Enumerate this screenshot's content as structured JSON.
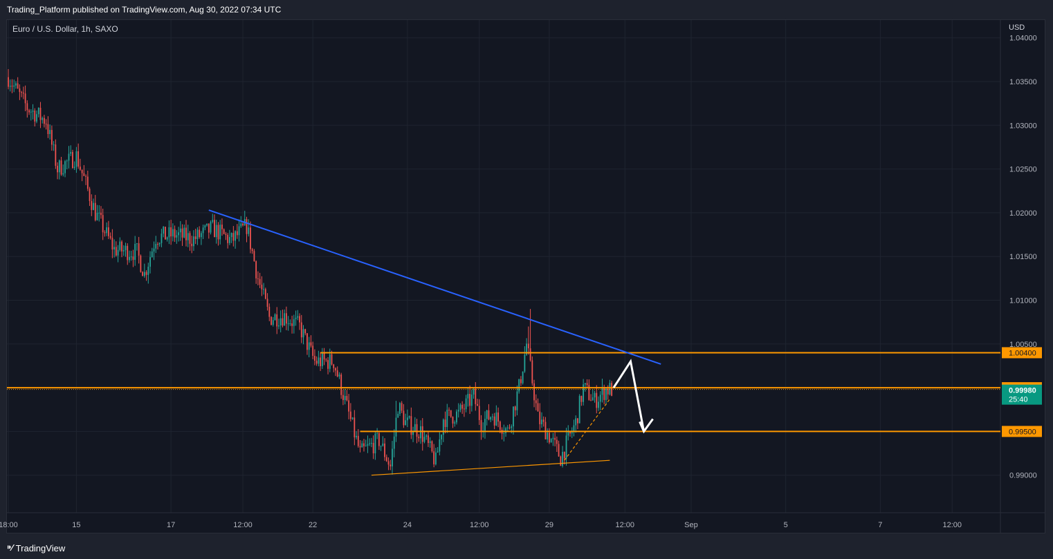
{
  "header": {
    "publisher_line": "Trading_Platform published on TradingView.com, Aug 30, 2022 07:34 UTC"
  },
  "chart_header": {
    "symbol_line": "Euro / U.S. Dollar, 1h, SAXO",
    "currency": "USD"
  },
  "footer": {
    "brand": "TradingView",
    "brand_icon": "tradingview-logo-icon"
  },
  "colors": {
    "background": "#131722",
    "grid": "#1f2430",
    "up_candle": "#26a69a",
    "down_candle": "#ef5350",
    "resistance_trendline": "#2962ff",
    "support_lines": "#ff9800",
    "projection_arrow": "#ffffff",
    "last_price_badge": "#089981"
  },
  "chart_data": {
    "type": "candlestick",
    "instrument": "Euro / U.S. Dollar",
    "timeframe": "1h",
    "source": "SAXO",
    "y_axis": {
      "unit": "USD",
      "ylim": [
        0.985,
        1.0405
      ],
      "tick_labels": [
        "1.04000",
        "1.03500",
        "1.03000",
        "1.02500",
        "1.02000",
        "1.01500",
        "1.01000",
        "1.00500",
        "0.99000"
      ]
    },
    "x_axis": {
      "tick_labels": [
        "18:00",
        "15",
        "17",
        "12:00",
        "22",
        "24",
        "12:00",
        "29",
        "12:00",
        "Sep",
        "5",
        "7",
        "12:00"
      ],
      "tick_positions_bars": [
        0,
        36,
        86,
        124,
        161,
        211,
        249,
        286,
        326,
        361,
        411,
        461,
        499
      ]
    },
    "grid": true,
    "candle_count": 320,
    "close_path": [
      [
        0,
        1.0355
      ],
      [
        10,
        1.032
      ],
      [
        20,
        1.0305
      ],
      [
        26,
        1.025
      ],
      [
        36,
        1.0265
      ],
      [
        46,
        1.02
      ],
      [
        56,
        1.0158
      ],
      [
        68,
        1.0155
      ],
      [
        72,
        1.013
      ],
      [
        78,
        1.0172
      ],
      [
        88,
        1.0175
      ],
      [
        98,
        1.017
      ],
      [
        108,
        1.0182
      ],
      [
        118,
        1.0168
      ],
      [
        126,
        1.0185
      ],
      [
        132,
        1.0125
      ],
      [
        138,
        1.008
      ],
      [
        146,
        1.0082
      ],
      [
        154,
        1.007
      ],
      [
        162,
        1.003
      ],
      [
        172,
        1.003
      ],
      [
        178,
        0.9985
      ],
      [
        186,
        0.9925
      ],
      [
        196,
        0.994
      ],
      [
        202,
        0.991
      ],
      [
        206,
        0.998
      ],
      [
        210,
        0.996
      ],
      [
        218,
        0.995
      ],
      [
        226,
        0.9915
      ],
      [
        230,
        0.9965
      ],
      [
        238,
        0.997
      ],
      [
        246,
        0.999
      ],
      [
        250,
        0.996
      ],
      [
        256,
        0.997
      ],
      [
        264,
        0.995
      ],
      [
        270,
        1.0
      ],
      [
        274,
        1.005
      ],
      [
        280,
        0.9965
      ],
      [
        286,
        0.9945
      ],
      [
        292,
        0.992
      ],
      [
        300,
        0.996
      ],
      [
        304,
        1.0
      ],
      [
        310,
        0.9985
      ],
      [
        316,
        0.9998
      ],
      [
        319,
        0.9998
      ]
    ],
    "horizontal_levels": [
      {
        "price": 1.004,
        "label": "1.00400"
      },
      {
        "price": 1.0,
        "label": "1.00000"
      },
      {
        "price": 0.995,
        "label": "0.99500"
      }
    ],
    "last_price": {
      "value": 0.9998,
      "label": "0.99980",
      "countdown": "25:40"
    },
    "drawings": [
      {
        "kind": "trendline",
        "color": "resistance",
        "from": {
          "bar": 106,
          "price": 1.0203
        },
        "to": {
          "bar": 345,
          "price": 1.0027
        }
      },
      {
        "kind": "trendline",
        "color": "support",
        "from": {
          "bar": 192,
          "price": 0.99
        },
        "to": {
          "bar": 318,
          "price": 0.9917
        }
      },
      {
        "kind": "dashed-trendline",
        "color": "support",
        "from": {
          "bar": 294,
          "price": 0.9917
        },
        "to": {
          "bar": 318,
          "price": 0.9987
        }
      },
      {
        "kind": "arrow-path",
        "color": "arrow",
        "points": [
          {
            "bar": 320,
            "price": 1.0
          },
          {
            "bar": 329,
            "price": 1.003
          },
          {
            "bar": 336,
            "price": 0.995
          }
        ]
      }
    ]
  }
}
